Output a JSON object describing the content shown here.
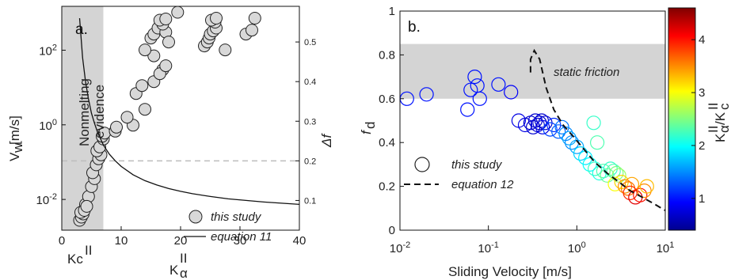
{
  "chart_data": [
    {
      "panel": "a.",
      "type": "scatter",
      "xlabel": "K",
      "xlabel_sub": "α",
      "xlabel_sup": "II",
      "ylabel": "V",
      "ylabel_sub": "w",
      "ylabel_unit": "[m/s]",
      "y2label": "Δf",
      "xlim": [
        0,
        40
      ],
      "ylim_log": [
        0.0015,
        1500
      ],
      "y2lim": [
        0.025,
        0.59
      ],
      "x_ticks": [
        "0",
        "10",
        "20",
        "30",
        "40"
      ],
      "y_ticks": [
        "10-2",
        "100",
        "102"
      ],
      "y2_ticks": [
        "0.1",
        "0.2",
        "0.3",
        "0.4",
        "0.5"
      ],
      "kc_label": "Kc",
      "kc_sup": "II",
      "kc_value": 7,
      "dashed_level": 0.2,
      "shaded_label_1": "Nonmelting",
      "shaded_label_2": "evidence",
      "legend": {
        "scatter": "this study",
        "line": "equation 11"
      },
      "points": [
        {
          "x": 3,
          "y": 0.05
        },
        {
          "x": 3.3,
          "y": 0.058
        },
        {
          "x": 3.6,
          "y": 0.066
        },
        {
          "x": 3.2,
          "y": 0.07
        },
        {
          "x": 4,
          "y": 0.09
        },
        {
          "x": 4.5,
          "y": 0.11
        },
        {
          "x": 3.8,
          "y": 0.075
        },
        {
          "x": 4.2,
          "y": 0.085
        },
        {
          "x": 5,
          "y": 0.135
        },
        {
          "x": 5.5,
          "y": 0.155
        },
        {
          "x": 5.2,
          "y": 0.17
        },
        {
          "x": 5.8,
          "y": 0.19
        },
        {
          "x": 6.2,
          "y": 0.205
        },
        {
          "x": 6.6,
          "y": 0.215
        },
        {
          "x": 5.9,
          "y": 0.225
        },
        {
          "x": 6.4,
          "y": 0.235
        },
        {
          "x": 7,
          "y": 0.255
        },
        {
          "x": 6.8,
          "y": 0.262
        },
        {
          "x": 7.2,
          "y": 0.27
        },
        {
          "x": 9,
          "y": 0.275
        },
        {
          "x": 9.2,
          "y": 0.285
        },
        {
          "x": 12,
          "y": 0.29
        },
        {
          "x": 11,
          "y": 0.31
        },
        {
          "x": 14,
          "y": 0.33
        },
        {
          "x": 12.5,
          "y": 0.37
        },
        {
          "x": 13.5,
          "y": 0.39
        },
        {
          "x": 15.5,
          "y": 0.4
        },
        {
          "x": 17,
          "y": 0.43
        },
        {
          "x": 16.5,
          "y": 0.42
        },
        {
          "x": 17.5,
          "y": 0.44
        },
        {
          "x": 15.5,
          "y": 0.465
        },
        {
          "x": 14,
          "y": 0.48
        },
        {
          "x": 15,
          "y": 0.51
        },
        {
          "x": 15.5,
          "y": 0.52
        },
        {
          "x": 16.2,
          "y": 0.535
        },
        {
          "x": 17.5,
          "y": 0.525
        },
        {
          "x": 18,
          "y": 0.5
        },
        {
          "x": 17,
          "y": 0.545
        },
        {
          "x": 16.5,
          "y": 0.555
        },
        {
          "x": 17.5,
          "y": 0.558
        },
        {
          "x": 19.5,
          "y": 0.575
        },
        {
          "x": 24,
          "y": 0.49
        },
        {
          "x": 24.5,
          "y": 0.5
        },
        {
          "x": 24.8,
          "y": 0.51
        },
        {
          "x": 25,
          "y": 0.52
        },
        {
          "x": 25.5,
          "y": 0.528
        },
        {
          "x": 26,
          "y": 0.535
        },
        {
          "x": 25.8,
          "y": 0.55
        },
        {
          "x": 25.2,
          "y": 0.555
        },
        {
          "x": 26,
          "y": 0.56
        },
        {
          "x": 27.5,
          "y": 0.48
        },
        {
          "x": 31,
          "y": 0.52
        },
        {
          "x": 32,
          "y": 0.53
        },
        {
          "x": 32.5,
          "y": 0.56
        }
      ],
      "line": {
        "name": "equation 11",
        "x": [
          3,
          3.5,
          4,
          4.5,
          5,
          5.5,
          6,
          7,
          8,
          9,
          10,
          12,
          14,
          16,
          18,
          20,
          22,
          25,
          28,
          31,
          34,
          37,
          40
        ],
        "y": [
          0.56,
          0.46,
          0.4,
          0.355,
          0.32,
          0.295,
          0.273,
          0.24,
          0.217,
          0.2,
          0.186,
          0.165,
          0.15,
          0.139,
          0.13,
          0.123,
          0.117,
          0.11,
          0.104,
          0.1,
          0.096,
          0.093,
          0.09
        ]
      }
    },
    {
      "panel": "b.",
      "type": "scatter",
      "xlabel": "Sliding Velocity [m/s]",
      "ylabel": "f",
      "ylabel_sub": "d",
      "xlim_log": [
        0.01,
        10
      ],
      "ylim": [
        0,
        1
      ],
      "x_ticks": [
        "10-2",
        "10-1",
        "100",
        "101"
      ],
      "y_ticks": [
        "0",
        "0.2",
        "0.4",
        "0.6",
        "0.8",
        "1"
      ],
      "band": [
        0.6,
        0.85
      ],
      "band_label": "static friction",
      "colorbar": {
        "label": "K",
        "label_sub": "α",
        "label_sup": "II",
        "label_denom": "/K",
        "label_denom_sub": "c",
        "label_denom_sup": "II",
        "range": [
          0.4,
          4.6
        ],
        "ticks": [
          "1",
          "2",
          "3",
          "4"
        ],
        "colors": [
          "#00008f",
          "#0000ff",
          "#0080ff",
          "#00ffff",
          "#80ff80",
          "#ffff00",
          "#ff8000",
          "#ff0000",
          "#800000"
        ]
      },
      "legend": {
        "scatter": "this study",
        "line": "equation 12"
      },
      "points": [
        {
          "x": 0.012,
          "y": 0.6,
          "k": 1.0
        },
        {
          "x": 0.02,
          "y": 0.62,
          "k": 1.0
        },
        {
          "x": 0.058,
          "y": 0.55,
          "k": 1.0
        },
        {
          "x": 0.063,
          "y": 0.64,
          "k": 1.0
        },
        {
          "x": 0.07,
          "y": 0.7,
          "k": 1.0
        },
        {
          "x": 0.075,
          "y": 0.66,
          "k": 1.0
        },
        {
          "x": 0.08,
          "y": 0.6,
          "k": 1.0
        },
        {
          "x": 0.13,
          "y": 0.665,
          "k": 1.0
        },
        {
          "x": 0.18,
          "y": 0.63,
          "k": 0.9
        },
        {
          "x": 0.22,
          "y": 0.5,
          "k": 0.8
        },
        {
          "x": 0.26,
          "y": 0.48,
          "k": 0.8
        },
        {
          "x": 0.3,
          "y": 0.49,
          "k": 0.7
        },
        {
          "x": 0.32,
          "y": 0.47,
          "k": 0.7
        },
        {
          "x": 0.34,
          "y": 0.5,
          "k": 0.7
        },
        {
          "x": 0.36,
          "y": 0.48,
          "k": 0.7
        },
        {
          "x": 0.38,
          "y": 0.49,
          "k": 0.7
        },
        {
          "x": 0.41,
          "y": 0.47,
          "k": 0.8
        },
        {
          "x": 0.44,
          "y": 0.49,
          "k": 0.7
        },
        {
          "x": 0.4,
          "y": 0.5,
          "k": 0.7
        },
        {
          "x": 0.5,
          "y": 0.46,
          "k": 1.2
        },
        {
          "x": 0.55,
          "y": 0.48,
          "k": 1.1
        },
        {
          "x": 0.62,
          "y": 0.45,
          "k": 1.3
        },
        {
          "x": 0.68,
          "y": 0.47,
          "k": 1.4
        },
        {
          "x": 0.75,
          "y": 0.44,
          "k": 1.5
        },
        {
          "x": 0.82,
          "y": 0.42,
          "k": 1.6
        },
        {
          "x": 0.88,
          "y": 0.4,
          "k": 1.5
        },
        {
          "x": 1.0,
          "y": 0.38,
          "k": 1.6
        },
        {
          "x": 1.1,
          "y": 0.35,
          "k": 1.8
        },
        {
          "x": 1.25,
          "y": 0.33,
          "k": 1.9
        },
        {
          "x": 1.4,
          "y": 0.3,
          "k": 2.0
        },
        {
          "x": 1.55,
          "y": 0.49,
          "k": 2.2
        },
        {
          "x": 1.6,
          "y": 0.28,
          "k": 2.2
        },
        {
          "x": 1.8,
          "y": 0.26,
          "k": 2.1
        },
        {
          "x": 1.7,
          "y": 0.4,
          "k": 2.3
        },
        {
          "x": 2.0,
          "y": 0.27,
          "k": 2.3
        },
        {
          "x": 2.2,
          "y": 0.25,
          "k": 2.4
        },
        {
          "x": 2.4,
          "y": 0.28,
          "k": 2.2
        },
        {
          "x": 2.6,
          "y": 0.27,
          "k": 2.3
        },
        {
          "x": 2.8,
          "y": 0.26,
          "k": 2.5
        },
        {
          "x": 3.0,
          "y": 0.25,
          "k": 2.6
        },
        {
          "x": 2.7,
          "y": 0.21,
          "k": 3.0
        },
        {
          "x": 3.2,
          "y": 0.22,
          "k": 3.2
        },
        {
          "x": 3.5,
          "y": 0.2,
          "k": 3.5
        },
        {
          "x": 3.8,
          "y": 0.19,
          "k": 3.6
        },
        {
          "x": 4.2,
          "y": 0.21,
          "k": 3.4
        },
        {
          "x": 4.0,
          "y": 0.17,
          "k": 3.9
        },
        {
          "x": 4.6,
          "y": 0.15,
          "k": 4.2
        },
        {
          "x": 5.2,
          "y": 0.16,
          "k": 4.0
        },
        {
          "x": 5.8,
          "y": 0.18,
          "k": 3.5
        },
        {
          "x": 6.2,
          "y": 0.2,
          "k": 3.3
        }
      ],
      "line": {
        "name": "equation 12",
        "x": [
          0.3,
          0.3,
          0.33,
          0.38,
          0.45,
          0.55,
          0.7,
          0.9,
          1.2,
          1.6,
          2.2,
          3.0,
          4.0,
          5.5,
          7.5,
          10
        ],
        "y": [
          0.72,
          0.78,
          0.82,
          0.78,
          0.65,
          0.55,
          0.48,
          0.43,
          0.37,
          0.31,
          0.26,
          0.22,
          0.18,
          0.15,
          0.12,
          0.09
        ]
      }
    }
  ]
}
